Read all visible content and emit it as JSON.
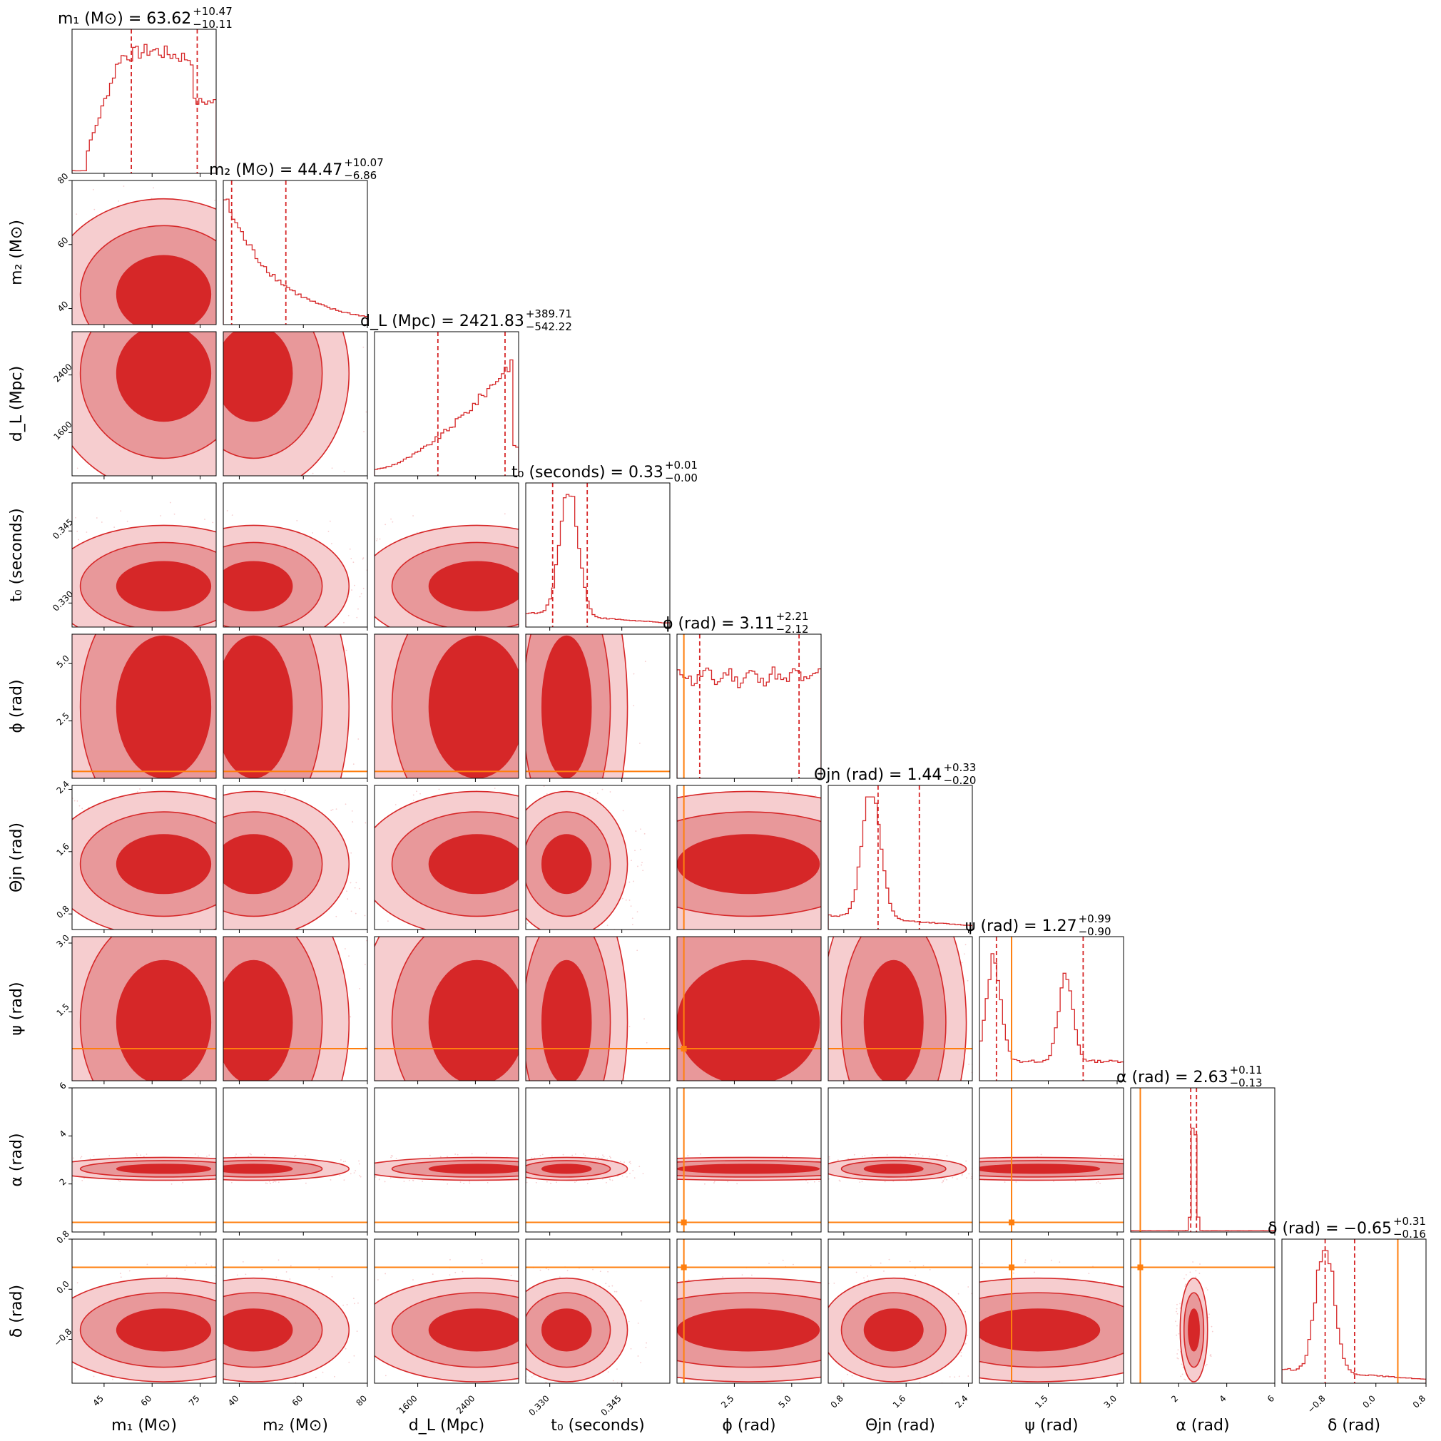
{
  "chart_data": {
    "type": "corner",
    "colors": {
      "posterior": "#d62728",
      "contour_mid": "#e8989a",
      "contour_outer": "#f6cdcf",
      "truth": "#ff7f0e"
    },
    "parameters": [
      {
        "id": "m1",
        "label": "m₁ (M⊙)",
        "title": "m₁ (M⊙) = 63.62",
        "sup": "+10.47",
        "sub": "−10.11",
        "range": [
          35,
          80
        ],
        "ticks": [
          "45",
          "60",
          "75"
        ],
        "tick_values": [
          45,
          60,
          75
        ],
        "median": 63.62,
        "lo": 53.51,
        "hi": 74.09,
        "truth": null,
        "hist": "plateau"
      },
      {
        "id": "m2",
        "label": "m₂ (M⊙)",
        "title": "m₂ (M⊙) = 44.47",
        "sup": "+10.07",
        "sub": "−6.86",
        "range": [
          35,
          80
        ],
        "ticks": [
          "40",
          "60",
          "80"
        ],
        "tick_values": [
          40,
          60,
          80
        ],
        "median": 44.47,
        "lo": 37.61,
        "hi": 54.54,
        "truth": null,
        "hist": "falling"
      },
      {
        "id": "dl",
        "label": "d_L (Mpc)",
        "title": "d_L (Mpc) = 2421.83",
        "sup": "+389.71",
        "sub": "−542.22",
        "range": [
          1000,
          3000
        ],
        "ticks": [
          "1600",
          "2400"
        ],
        "tick_values": [
          1600,
          2400
        ],
        "median": 2421.83,
        "lo": 1879.61,
        "hi": 2811.54,
        "truth": null,
        "hist": "rising"
      },
      {
        "id": "t0",
        "label": "t₀ (seconds)",
        "title": "t₀ (seconds) = 0.33",
        "sup": "+0.01",
        "sub": "−0.00",
        "range": [
          0.325,
          0.355
        ],
        "ticks": [
          "0.330",
          "0.345"
        ],
        "tick_values": [
          0.33,
          0.345
        ],
        "median": 0.3335,
        "lo": 0.3306,
        "hi": 0.3378,
        "truth": null,
        "hist": "peak"
      },
      {
        "id": "phi",
        "label": "ϕ (rad)",
        "title": "ϕ (rad) = 3.11",
        "sup": "+2.21",
        "sub": "−2.12",
        "range": [
          0,
          6.28
        ],
        "ticks": [
          "2.5",
          "5.0"
        ],
        "tick_values": [
          2.5,
          5.0
        ],
        "median": 3.11,
        "lo": 0.99,
        "hi": 5.32,
        "truth": 0.3,
        "hist": "flat"
      },
      {
        "id": "theta",
        "label": "Θjn (rad)",
        "title": "Θjn (rad) = 1.44",
        "sup": "+0.33",
        "sub": "−0.20",
        "range": [
          0.6,
          2.45
        ],
        "ticks": [
          "0.8",
          "1.6",
          "2.4"
        ],
        "tick_values": [
          0.8,
          1.6,
          2.4
        ],
        "median": 1.44,
        "lo": 1.24,
        "hi": 1.77,
        "truth": null,
        "hist": "peak"
      },
      {
        "id": "psi",
        "label": "ψ (rad)",
        "title": "ψ (rad) = 1.27",
        "sup": "+0.99",
        "sub": "−0.90",
        "range": [
          0,
          3.14
        ],
        "ticks": [
          "1.5",
          "3.0"
        ],
        "tick_values": [
          1.5,
          3.0
        ],
        "median": 1.27,
        "lo": 0.37,
        "hi": 2.26,
        "truth": 0.7,
        "hist": "bimodal"
      },
      {
        "id": "alpha",
        "label": "α (rad)",
        "title": "α (rad) = 2.63",
        "sup": "+0.11",
        "sub": "−0.13",
        "range": [
          0,
          6
        ],
        "ticks": [
          "2",
          "4",
          "6"
        ],
        "tick_values": [
          2,
          4,
          6
        ],
        "median": 2.63,
        "lo": 2.5,
        "hi": 2.74,
        "truth": 0.4,
        "hist": "spike"
      },
      {
        "id": "delta",
        "label": "δ (rad)",
        "title": "δ (rad) = −0.65",
        "sup": "+0.31",
        "sub": "−0.16",
        "range": [
          -1.5,
          0.8
        ],
        "ticks": [
          "−0.8",
          "0.0",
          "0.8"
        ],
        "tick_values": [
          -0.8,
          0.0,
          0.8
        ],
        "median": -0.65,
        "lo": -0.81,
        "hi": -0.34,
        "truth": 0.35,
        "hist": "peak"
      }
    ]
  }
}
